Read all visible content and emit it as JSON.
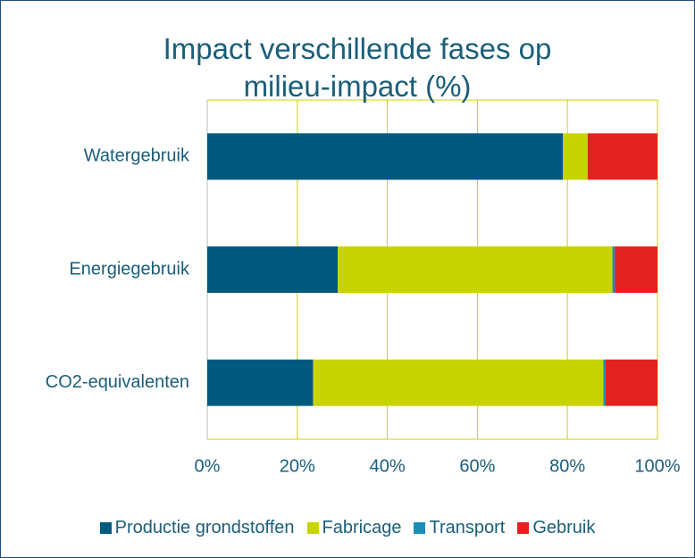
{
  "chart_data": {
    "type": "stacked-barh",
    "title": "Impact verschillende fases op milieu-impact (%)",
    "categories": [
      "Watergebruik",
      "Energiegebruik",
      "CO2-equivalenten"
    ],
    "series": [
      {
        "name": "Productie grondstoffen",
        "color": "#005a7e",
        "values": [
          79,
          29,
          23.5
        ]
      },
      {
        "name": "Fabricage",
        "color": "#c8d400",
        "values": [
          5.5,
          61,
          64.5
        ]
      },
      {
        "name": "Transport",
        "color": "#1a8fb5",
        "values": [
          0,
          0.5,
          0.5
        ]
      },
      {
        "name": "Gebruik",
        "color": "#e3221f",
        "values": [
          15.5,
          9.5,
          11.5
        ]
      }
    ],
    "xlim": [
      0,
      100
    ],
    "xticks": [
      {
        "value": 0,
        "label": "0%"
      },
      {
        "value": 20,
        "label": "20%"
      },
      {
        "value": 40,
        "label": "40%"
      },
      {
        "value": 60,
        "label": "60%"
      },
      {
        "value": 80,
        "label": "80%"
      },
      {
        "value": 100,
        "label": "100%"
      }
    ],
    "grid": true,
    "grid_color": "#c8d400",
    "legend": "bottom"
  }
}
